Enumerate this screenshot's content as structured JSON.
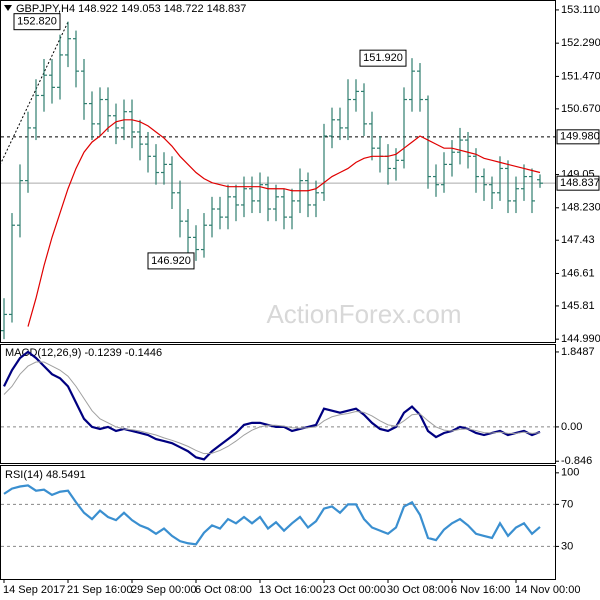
{
  "chart_data": [
    {
      "type": "ohlc",
      "title": "GBPJPY,H4 148.922 149.053 148.722 148.837",
      "watermark": "ActionForex.com",
      "categories": [
        "14 Sep 2017",
        null,
        null,
        null,
        null,
        null,
        null,
        null,
        "21 Sep 16:00",
        null,
        null,
        null,
        null,
        null,
        null,
        null,
        "29 Sep 00:00",
        null,
        null,
        null,
        null,
        null,
        null,
        null,
        "6 Oct 08:00",
        null,
        null,
        null,
        null,
        null,
        null,
        null,
        "13 Oct 16:00",
        null,
        null,
        null,
        null,
        null,
        null,
        null,
        "23 Oct 00:00",
        null,
        null,
        null,
        null,
        null,
        null,
        null,
        "30 Oct 08:00",
        null,
        null,
        null,
        null,
        null,
        null,
        null,
        "6 Nov 16:00",
        null,
        null,
        null,
        null,
        null,
        null,
        null,
        "14 Nov 00:00",
        null,
        null,
        null
      ],
      "open": [
        145.2,
        145.6,
        147.8,
        148.9,
        150.2,
        151.0,
        151.5,
        151.2,
        152.0,
        152.4,
        151.6,
        150.8,
        150.3,
        150.9,
        150.5,
        150.2,
        150.6,
        150.1,
        149.8,
        149.5,
        149.1,
        149.3,
        148.6,
        147.9,
        147.5,
        147.2,
        147.8,
        148.2,
        148.0,
        148.5,
        148.3,
        148.7,
        148.4,
        148.8,
        148.2,
        148.5,
        148.0,
        148.4,
        148.9,
        148.3,
        148.6,
        150.0,
        150.4,
        150.2,
        150.9,
        151.1,
        150.3,
        149.7,
        149.5,
        149.2,
        149.4,
        150.9,
        151.6,
        150.9,
        149.0,
        148.8,
        149.3,
        149.6,
        149.9,
        149.5,
        149.0,
        148.8,
        148.6,
        149.2,
        148.4,
        148.7,
        149.0,
        148.922
      ],
      "high": [
        146.0,
        148.1,
        149.3,
        150.6,
        151.4,
        151.9,
        151.9,
        152.5,
        152.82,
        152.6,
        151.9,
        151.1,
        151.2,
        151.2,
        150.8,
        150.9,
        150.9,
        150.4,
        150.1,
        149.8,
        149.6,
        149.5,
        148.9,
        148.2,
        147.8,
        148.1,
        148.5,
        148.5,
        148.8,
        148.8,
        149.0,
        149.0,
        149.1,
        149.0,
        148.8,
        148.7,
        148.7,
        149.2,
        149.1,
        148.9,
        150.3,
        150.7,
        150.7,
        151.4,
        151.4,
        151.3,
        150.6,
        150.0,
        149.8,
        149.7,
        151.2,
        151.92,
        151.8,
        151.0,
        149.3,
        149.6,
        149.9,
        150.2,
        150.1,
        149.7,
        149.2,
        149.0,
        149.5,
        149.4,
        149.0,
        149.3,
        149.2,
        149.053
      ],
      "low": [
        144.99,
        145.4,
        147.5,
        148.6,
        149.9,
        150.6,
        150.8,
        150.9,
        151.7,
        151.2,
        150.4,
        149.9,
        150.0,
        150.1,
        149.8,
        149.9,
        149.7,
        149.4,
        149.1,
        148.8,
        148.8,
        148.2,
        147.5,
        147.1,
        146.92,
        147.0,
        147.5,
        147.7,
        147.7,
        147.9,
        148.0,
        148.1,
        148.1,
        147.9,
        147.9,
        147.7,
        147.7,
        148.1,
        148.0,
        148.0,
        148.4,
        149.7,
        149.9,
        149.9,
        150.6,
        150.0,
        149.4,
        149.1,
        148.8,
        148.9,
        149.2,
        150.6,
        150.6,
        148.7,
        148.5,
        148.6,
        149.0,
        149.3,
        149.2,
        148.6,
        148.4,
        148.2,
        148.4,
        148.1,
        148.1,
        148.4,
        148.1,
        148.722
      ],
      "close": [
        145.6,
        147.8,
        148.9,
        150.2,
        151.0,
        151.5,
        151.2,
        152.0,
        152.4,
        151.6,
        150.8,
        150.3,
        150.9,
        150.5,
        150.2,
        150.6,
        150.1,
        149.8,
        149.5,
        149.1,
        149.3,
        148.6,
        147.9,
        147.5,
        147.2,
        147.8,
        148.2,
        148.0,
        148.5,
        148.3,
        148.7,
        148.4,
        148.8,
        148.2,
        148.5,
        148.0,
        148.4,
        148.9,
        148.3,
        148.6,
        150.0,
        150.4,
        150.2,
        150.9,
        151.1,
        150.3,
        149.7,
        149.5,
        149.2,
        149.4,
        150.9,
        151.6,
        150.9,
        149.0,
        148.8,
        149.3,
        149.6,
        149.9,
        149.5,
        149.0,
        148.8,
        148.6,
        149.2,
        148.4,
        148.7,
        149.0,
        148.4,
        148.837
      ],
      "color": "#2e7d6e",
      "overlay": {
        "color": "#e00000",
        "values": [
          null,
          null,
          null,
          145.3,
          146.0,
          146.8,
          147.5,
          148.1,
          148.7,
          149.2,
          149.6,
          149.85,
          150.0,
          150.2,
          150.35,
          150.4,
          150.4,
          150.35,
          150.25,
          150.1,
          149.95,
          149.75,
          149.5,
          149.3,
          149.1,
          148.95,
          148.85,
          148.8,
          148.75,
          148.75,
          148.75,
          148.75,
          148.75,
          148.7,
          148.7,
          148.7,
          148.65,
          148.65,
          148.65,
          148.7,
          148.85,
          149.0,
          149.1,
          149.2,
          149.35,
          149.45,
          149.5,
          149.5,
          149.5,
          149.55,
          149.7,
          149.85,
          150.0,
          149.9,
          149.8,
          149.7,
          149.7,
          149.65,
          149.6,
          149.55,
          149.45,
          149.4,
          149.35,
          149.3,
          149.25,
          149.2,
          149.15,
          149.1
        ]
      },
      "ylim": [
        144.92,
        153.33
      ],
      "yticks": [
        {
          "value": 153.11,
          "label": "153.110"
        },
        {
          "value": 152.29,
          "label": "152.290"
        },
        {
          "value": 151.47,
          "label": "151.470"
        },
        {
          "value": 150.67,
          "label": "150.670"
        },
        149.05,
        {
          "value": 148.23,
          "label": "148.230"
        },
        147.43,
        146.61,
        145.81,
        {
          "value": 144.99,
          "label": "144.990"
        }
      ],
      "levels": [
        {
          "value": 149.98,
          "label": "149.980"
        },
        148.837
      ],
      "level_styles": [
        "dashed",
        "solid"
      ],
      "annotations": [
        {
          "value": 152.82,
          "label": "152.820"
        },
        {
          "value": 146.92,
          "label": "146.920"
        },
        {
          "value": 151.92,
          "label": "151.920"
        }
      ]
    },
    {
      "type": "line",
      "title": "MACD(12,26,9) -0.1239 -0.1446",
      "ylim": [
        -0.89,
        2.02
      ],
      "yticks": [
        1.8487,
        {
          "value": 0,
          "label": "0.00"
        },
        -0.846
      ],
      "grid": [
        false,
        true,
        false
      ],
      "series": [
        {
          "color": "#000080",
          "values": [
            1.0,
            1.4,
            1.7,
            1.85,
            1.7,
            1.5,
            1.3,
            1.2,
            1.0,
            0.6,
            0.2,
            0.0,
            -0.05,
            0.0,
            -0.1,
            -0.05,
            -0.1,
            -0.15,
            -0.2,
            -0.3,
            -0.35,
            -0.4,
            -0.5,
            -0.6,
            -0.75,
            -0.8,
            -0.6,
            -0.45,
            -0.3,
            -0.15,
            0.05,
            0.1,
            0.1,
            0.05,
            0.0,
            0.0,
            -0.1,
            -0.05,
            0.0,
            0.05,
            0.45,
            0.4,
            0.35,
            0.4,
            0.45,
            0.3,
            0.1,
            -0.05,
            -0.1,
            0.0,
            0.35,
            0.5,
            0.3,
            -0.1,
            -0.25,
            -0.15,
            -0.1,
            0.0,
            -0.05,
            -0.15,
            -0.2,
            -0.15,
            -0.1,
            -0.2,
            -0.15,
            -0.1,
            -0.2,
            -0.1239
          ]
        },
        {
          "color": "#a0a0a0",
          "values": [
            0.8,
            1.0,
            1.3,
            1.5,
            1.6,
            1.6,
            1.5,
            1.4,
            1.25,
            1.0,
            0.7,
            0.4,
            0.2,
            0.1,
            0.0,
            -0.05,
            -0.07,
            -0.1,
            -0.15,
            -0.2,
            -0.27,
            -0.33,
            -0.4,
            -0.48,
            -0.58,
            -0.66,
            -0.65,
            -0.58,
            -0.48,
            -0.35,
            -0.2,
            -0.08,
            0.0,
            0.04,
            0.04,
            0.02,
            -0.02,
            -0.03,
            -0.02,
            0.0,
            0.15,
            0.25,
            0.3,
            0.33,
            0.38,
            0.36,
            0.27,
            0.15,
            0.05,
            0.02,
            0.15,
            0.3,
            0.32,
            0.15,
            0.0,
            -0.08,
            -0.1,
            -0.06,
            -0.05,
            -0.09,
            -0.14,
            -0.15,
            -0.13,
            -0.16,
            -0.16,
            -0.13,
            -0.16,
            -0.1446
          ]
        }
      ]
    },
    {
      "type": "line",
      "title": "RSI(14) 48.5491",
      "ylim": [
        -1,
        106.5
      ],
      "yticks": [
        100,
        70,
        30
      ],
      "grid": [
        false,
        true,
        true
      ],
      "series": [
        {
          "color": "#3a8fd0",
          "values": [
            80,
            85,
            87,
            88,
            83,
            84,
            79,
            82,
            83,
            72,
            62,
            56,
            64,
            58,
            55,
            62,
            55,
            50,
            47,
            42,
            47,
            40,
            35,
            33,
            32,
            43,
            50,
            47,
            56,
            52,
            58,
            52,
            58,
            47,
            53,
            45,
            52,
            58,
            48,
            54,
            66,
            68,
            62,
            70,
            70,
            56,
            48,
            45,
            42,
            48,
            68,
            72,
            60,
            38,
            36,
            46,
            52,
            56,
            50,
            42,
            40,
            38,
            52,
            40,
            48,
            52,
            42,
            48.5491
          ]
        }
      ]
    }
  ]
}
